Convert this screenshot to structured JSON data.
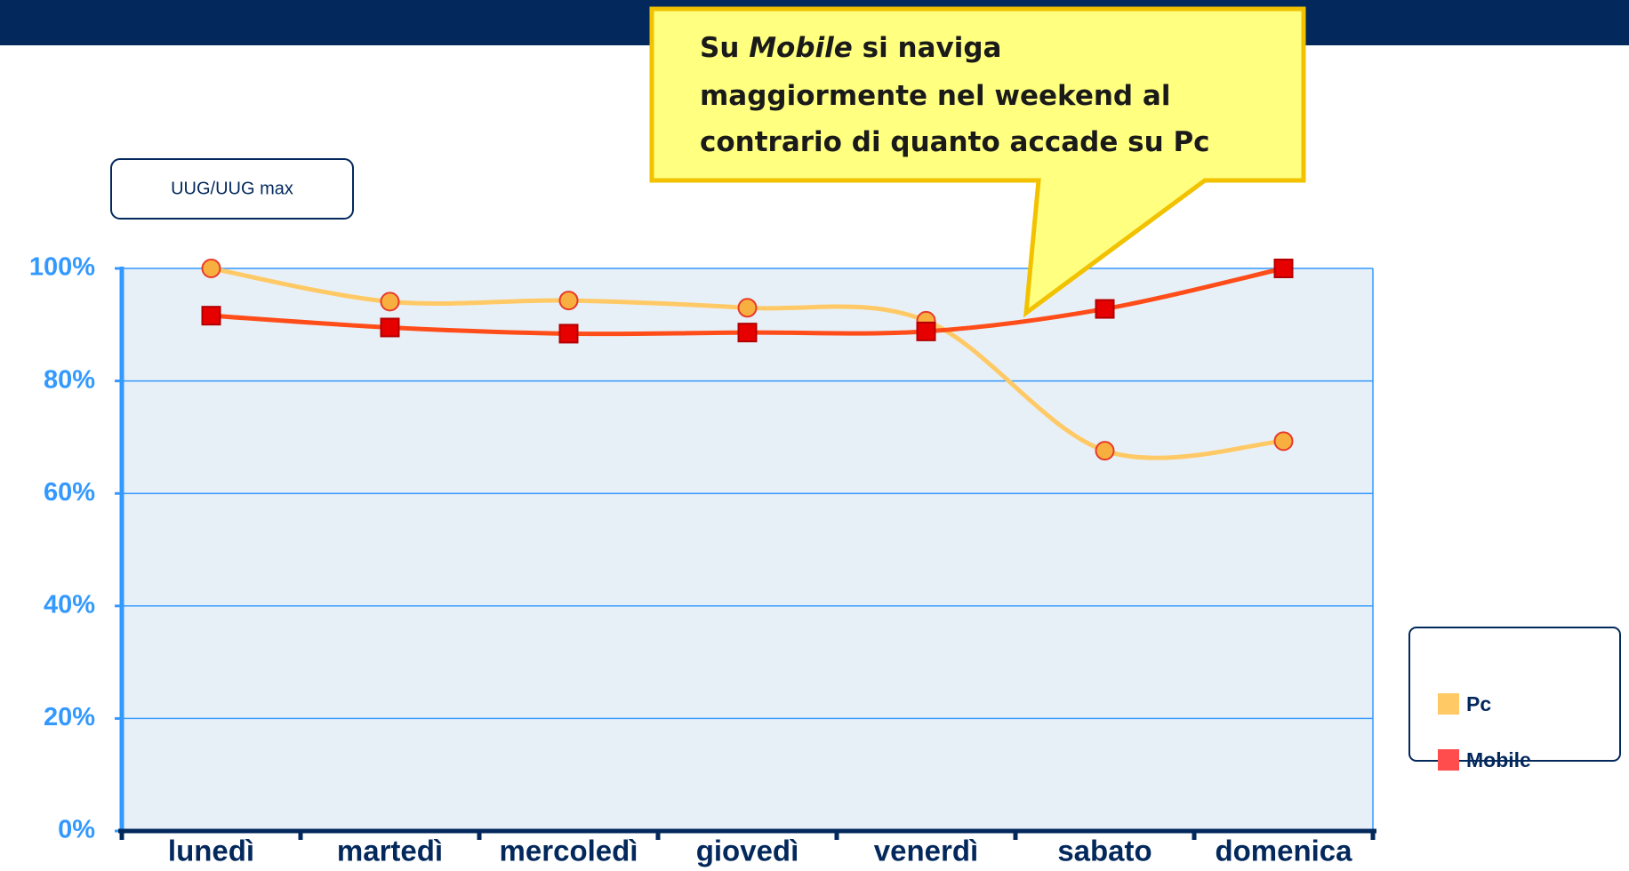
{
  "chart_data": {
    "type": "line",
    "axis_label": "UUG/UUG max",
    "annotation": {
      "line1": [
        "Su",
        "Mobile",
        "si naviga"
      ],
      "line2": "maggiormente nel weekend al",
      "line3": "contrario di quanto accade su Pc"
    },
    "categories": [
      "lunedì",
      "martedì",
      "mercoledì",
      "giovedì",
      "venerdì",
      "sabato",
      "domenica"
    ],
    "series": [
      {
        "name": "Pc",
        "color": "#ffc966",
        "marker_color": "#f7b040",
        "marker": "circle",
        "values": [
          100,
          94.1,
          94.3,
          93.0,
          90.7,
          67.6,
          69.3
        ]
      },
      {
        "name": "Mobile",
        "color": "#ff4d1a",
        "marker_color": "#e60000",
        "marker": "square",
        "values": [
          91.6,
          89.5,
          88.4,
          88.6,
          88.8,
          92.8,
          100
        ]
      }
    ],
    "ylim": [
      0,
      100
    ],
    "yticks": [
      {
        "value": 0,
        "label": "0%"
      },
      {
        "value": 20,
        "label": "20%"
      },
      {
        "value": 40,
        "label": "40%"
      },
      {
        "value": 60,
        "label": "60%"
      },
      {
        "value": 80,
        "label": "80%"
      },
      {
        "value": 100,
        "label": "100%"
      }
    ],
    "grid": true,
    "legend": "right"
  }
}
